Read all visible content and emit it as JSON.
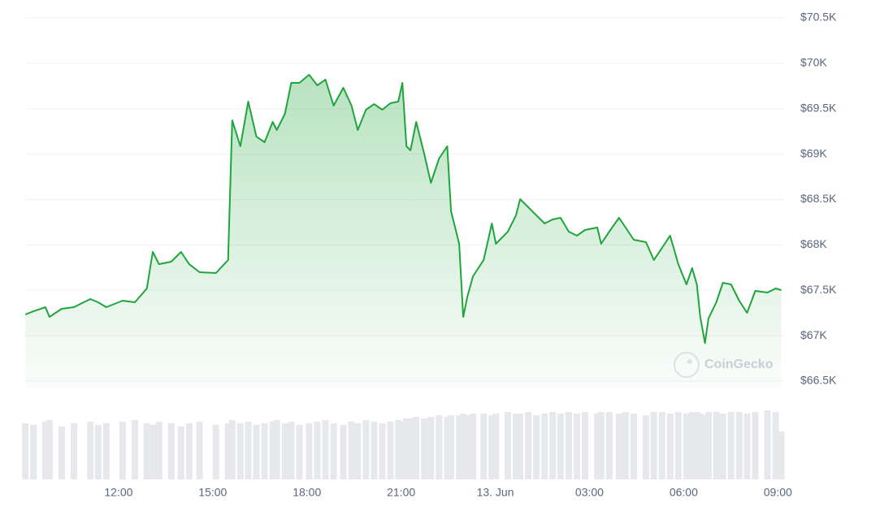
{
  "chart_data": {
    "type": "line",
    "watermark": "CoinGecko",
    "x": [
      9.03,
      9.29,
      9.67,
      9.8,
      10.19,
      10.58,
      11.1,
      11.35,
      11.61,
      12.13,
      12.52,
      12.9,
      13.09,
      13.29,
      13.68,
      13.99,
      14.25,
      14.58,
      15.1,
      15.49,
      15.62,
      15.88,
      16.13,
      16.39,
      16.65,
      16.91,
      17.04,
      17.3,
      17.5,
      17.76,
      18.07,
      18.33,
      18.59,
      18.85,
      19.16,
      19.42,
      19.62,
      19.88,
      20.14,
      20.4,
      20.66,
      20.91,
      21.04,
      21.17,
      21.3,
      21.48,
      21.74,
      21.95,
      22.21,
      22.47,
      22.59,
      22.85,
      22.98,
      23.11,
      23.29,
      23.63,
      23.89,
      24.02,
      24.4,
      24.66,
      24.79,
      25.05,
      25.31,
      25.57,
      25.83,
      26.08,
      26.34,
      26.6,
      26.86,
      27.25,
      27.37,
      27.63,
      27.94,
      28.15,
      28.41,
      28.8,
      29.05,
      29.31,
      29.57,
      29.83,
      30.09,
      30.27,
      30.42,
      30.53,
      30.68,
      30.79,
      31.04,
      31.25,
      31.51,
      31.77,
      32.02,
      32.28,
      32.67,
      32.93,
      33.11
    ],
    "series": [
      {
        "color": "#1fa53b",
        "values": [
          67234,
          67269,
          67314,
          67207,
          67296,
          67314,
          67404,
          67368,
          67314,
          67386,
          67368,
          67520,
          67923,
          67788,
          67815,
          67923,
          67788,
          67699,
          67690,
          67833,
          69372,
          69086,
          69578,
          69193,
          69131,
          69355,
          69265,
          69444,
          69784,
          69784,
          69874,
          69757,
          69820,
          69534,
          69730,
          69534,
          69265,
          69489,
          69551,
          69489,
          69560,
          69578,
          69784,
          69086,
          69041,
          69355,
          68997,
          68683,
          68952,
          69086,
          68370,
          68012,
          67207,
          67431,
          67654,
          67833,
          68236,
          68012,
          68146,
          68325,
          68504,
          68415,
          68325,
          68236,
          68281,
          68299,
          68146,
          68102,
          68164,
          68191,
          68012,
          68146,
          68299,
          68191,
          68057,
          68030,
          67833,
          67967,
          68102,
          67788,
          67565,
          67744,
          67565,
          67207,
          66920,
          67189,
          67368,
          67583,
          67565,
          67386,
          67252,
          67493,
          67475,
          67520,
          67502
        ]
      }
    ],
    "volume": [
      70,
      68,
      72,
      74,
      66,
      70,
      72,
      68,
      70,
      72,
      74,
      70,
      68,
      72,
      70,
      66,
      70,
      72,
      68,
      70,
      74,
      70,
      72,
      68,
      70,
      72,
      74,
      70,
      72,
      68,
      70,
      72,
      74,
      70,
      68,
      72,
      70,
      74,
      72,
      70,
      72,
      74,
      72,
      76,
      76,
      78,
      76,
      78,
      80,
      78,
      80,
      80,
      82,
      80,
      82,
      82,
      80,
      82,
      84,
      82,
      82,
      84,
      80,
      82,
      84,
      82,
      84,
      82,
      84,
      82,
      84,
      84,
      82,
      84,
      82,
      80,
      84,
      84,
      82,
      84,
      82,
      84,
      84,
      82,
      80,
      84,
      84,
      82,
      84,
      84,
      82,
      84,
      86,
      84,
      60
    ],
    "xlim": [
      9.0,
      33.2
    ],
    "xticks": [
      {
        "value": 12,
        "label": "12:00"
      },
      {
        "value": 15,
        "label": "15:00"
      },
      {
        "value": 18,
        "label": "18:00"
      },
      {
        "value": 21,
        "label": "21:00"
      },
      {
        "value": 24,
        "label": "13. Jun"
      },
      {
        "value": 27,
        "label": "03:00"
      },
      {
        "value": 30,
        "label": "06:00"
      },
      {
        "value": 33,
        "label": "09:00"
      }
    ],
    "ylim": [
      66500,
      70500
    ],
    "yticks": [
      {
        "value": 66500,
        "label": "$66.5K"
      },
      {
        "value": 67000,
        "label": "$67K"
      },
      {
        "value": 67500,
        "label": "$67.5K"
      },
      {
        "value": 68000,
        "label": "$68K"
      },
      {
        "value": 68500,
        "label": "$68.5K"
      },
      {
        "value": 69000,
        "label": "$69K"
      },
      {
        "value": 69500,
        "label": "$69.5K"
      },
      {
        "value": 70000,
        "label": "$70K"
      },
      {
        "value": 70500,
        "label": "$70.5K"
      }
    ],
    "grid": true
  }
}
